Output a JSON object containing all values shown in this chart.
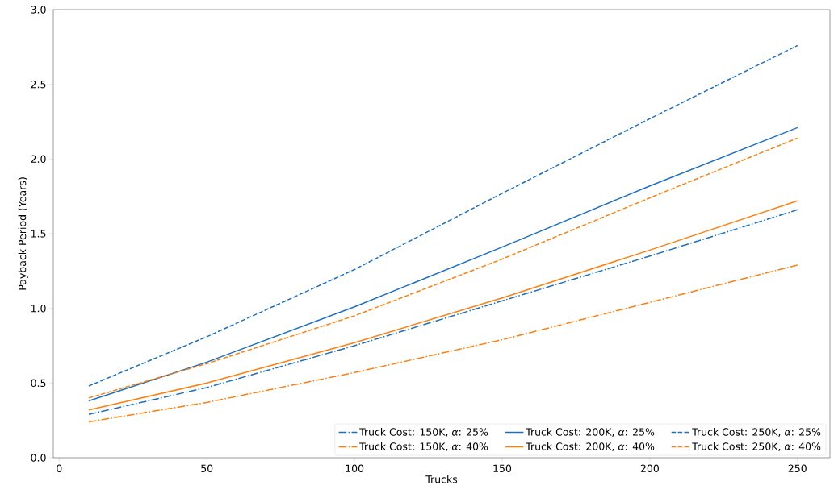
{
  "chart_data": {
    "type": "line",
    "xlabel": "Trucks",
    "ylabel": "Payback Period (Years)",
    "x": [
      10,
      50,
      100,
      150,
      200,
      250
    ],
    "series": [
      {
        "name": "Truck Cost: 150K, *α*: 25%",
        "color": "#1f6fc0",
        "line_style": "dashdot",
        "values": [
          0.29,
          0.47,
          0.75,
          1.05,
          1.35,
          1.66
        ]
      },
      {
        "name": "Truck Cost: 150K, *α*: 40%",
        "color": "#ff7f0e",
        "line_style": "dashdot",
        "values": [
          0.24,
          0.37,
          0.57,
          0.79,
          1.04,
          1.29
        ]
      },
      {
        "name": "Truck Cost: 200K, *α*: 25%",
        "color": "#1f6fc0",
        "line_style": "solid",
        "values": [
          0.38,
          0.64,
          1.01,
          1.41,
          1.82,
          2.21
        ]
      },
      {
        "name": "Truck Cost: 200K, *α*: 40%",
        "color": "#ff7f0e",
        "line_style": "solid",
        "values": [
          0.32,
          0.5,
          0.77,
          1.07,
          1.39,
          1.72
        ]
      },
      {
        "name": "Truck Cost: 250K, *α*: 25%",
        "color": "#1f6fc0",
        "line_style": "dashed",
        "values": [
          0.48,
          0.81,
          1.26,
          1.77,
          2.27,
          2.76
        ]
      },
      {
        "name": "Truck Cost: 250K, *α*: 40%",
        "color": "#ff7f0e",
        "line_style": "dashed",
        "values": [
          0.4,
          0.63,
          0.95,
          1.33,
          1.74,
          2.14
        ]
      }
    ],
    "xlim": [
      -2,
      261
    ],
    "ylim": [
      0,
      3
    ],
    "xticks": [
      0,
      50,
      100,
      150,
      200,
      250
    ],
    "yticks": [
      {
        "value": 0,
        "label": "0.0"
      },
      {
        "value": 0.5,
        "label": "0.5"
      },
      {
        "value": 1,
        "label": "1.0"
      },
      {
        "value": 1.5,
        "label": "1.5"
      },
      {
        "value": 2,
        "label": "2.0"
      },
      {
        "value": 2.5,
        "label": "2.5"
      },
      {
        "value": 3,
        "label": "3.0"
      }
    ],
    "grid": false,
    "legend": "bottom right",
    "marker": "none"
  }
}
